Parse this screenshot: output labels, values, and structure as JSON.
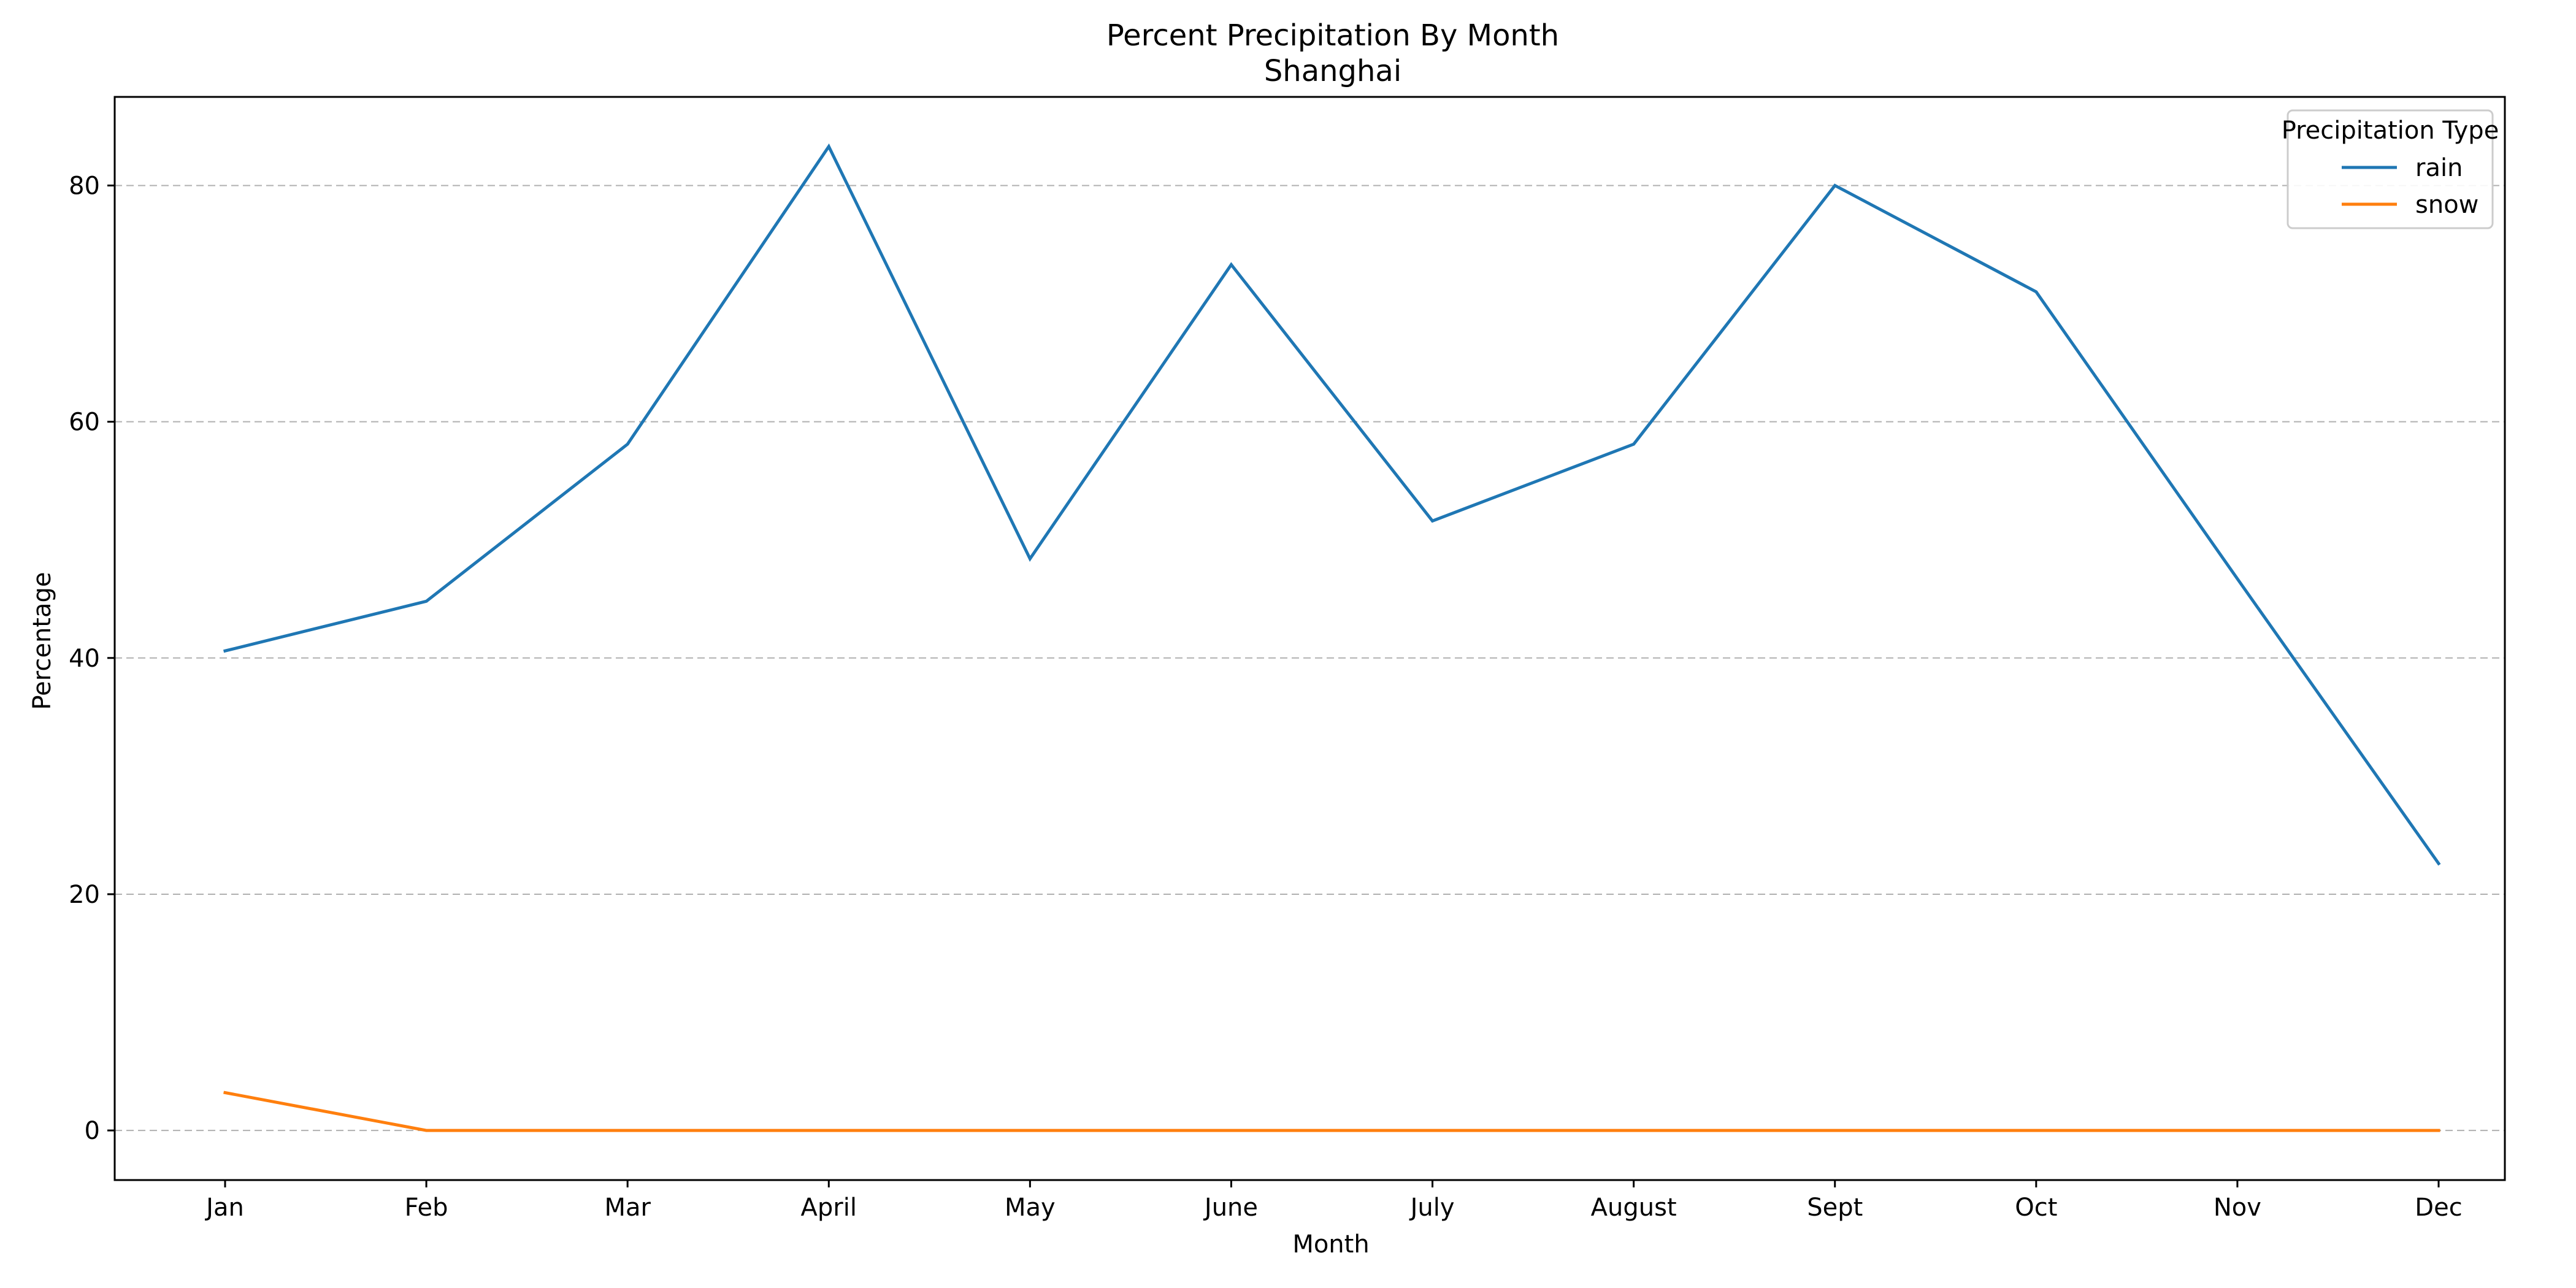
{
  "chart_data": {
    "type": "line",
    "title": "Percent Precipitation By Month",
    "subtitle": "Shanghai",
    "xlabel": "Month",
    "ylabel": "Percentage",
    "categories": [
      "Jan",
      "Feb",
      "Mar",
      "April",
      "May",
      "June",
      "July",
      "August",
      "Sept",
      "Oct",
      "Nov",
      "Dec"
    ],
    "series": [
      {
        "name": "rain",
        "color": "#1f77b4",
        "values": [
          40.6,
          44.8,
          58.1,
          83.3,
          48.4,
          73.3,
          51.6,
          58.1,
          80.0,
          71.0,
          46.7,
          22.6
        ]
      },
      {
        "name": "snow",
        "color": "#ff7f0e",
        "values": [
          3.2,
          0,
          0,
          0,
          0,
          0,
          0,
          0,
          0,
          0,
          0,
          0
        ]
      }
    ],
    "ylim": [
      -4.2,
      87.5
    ],
    "yticks": [
      0,
      20,
      40,
      60,
      80
    ],
    "grid": "horizontal dashed",
    "legend": {
      "title": "Precipitation Type",
      "placement": "top-right"
    }
  }
}
